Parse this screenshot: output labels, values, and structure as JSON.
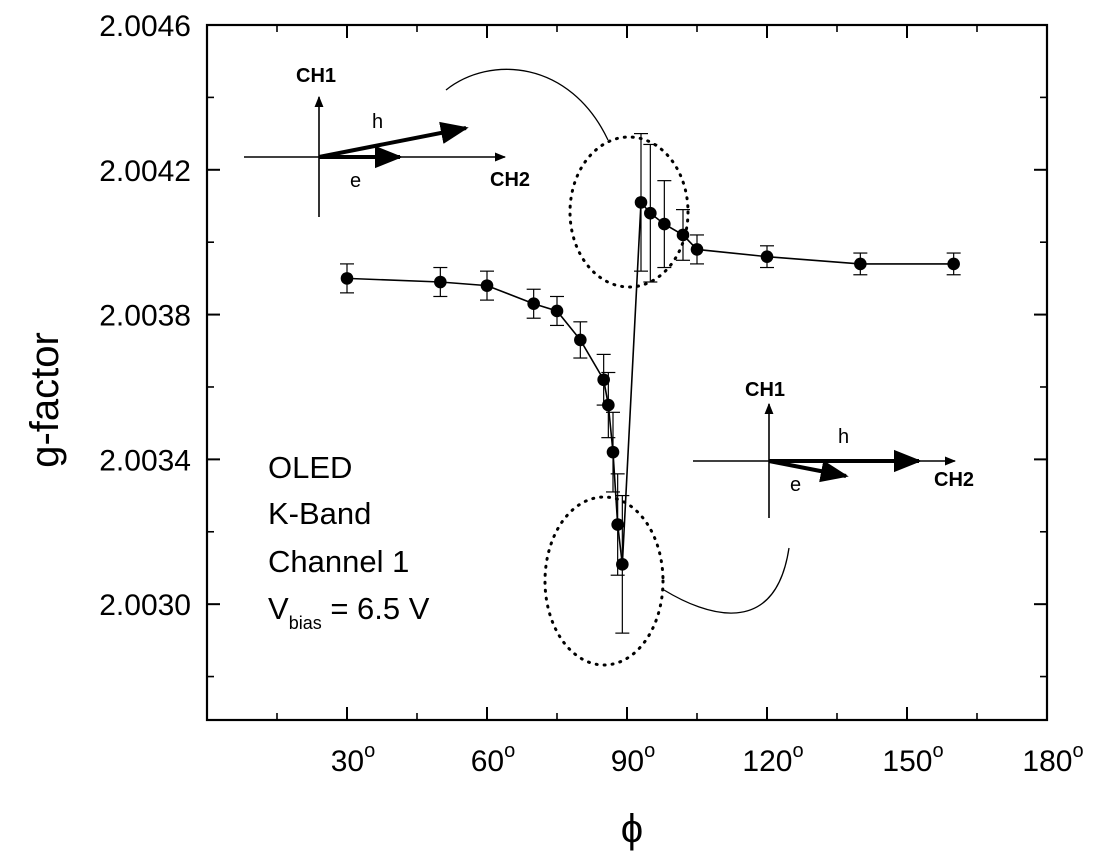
{
  "chart_data": {
    "type": "scatter",
    "xlabel": "ϕ",
    "ylabel": "g-factor",
    "xlim": [
      0,
      180
    ],
    "ylim": [
      2.00268,
      2.0046
    ],
    "x_ticks": [
      {
        "value": 30,
        "label": "30",
        "sup": "o"
      },
      {
        "value": 60,
        "label": "60",
        "sup": "o"
      },
      {
        "value": 90,
        "label": "90",
        "sup": "o"
      },
      {
        "value": 120,
        "label": "120",
        "sup": "o"
      },
      {
        "value": 150,
        "label": "150",
        "sup": "o"
      },
      {
        "value": 180,
        "label": "180",
        "sup": "o"
      }
    ],
    "y_ticks": [
      {
        "value": 2.003,
        "label": "2.0030"
      },
      {
        "value": 2.0034,
        "label": "2.0034"
      },
      {
        "value": 2.0038,
        "label": "2.0038"
      },
      {
        "value": 2.0042,
        "label": "2.0042"
      },
      {
        "value": 2.0046,
        "label": "2.0046"
      }
    ],
    "grid": false,
    "series": [
      {
        "points": [
          {
            "x": 30,
            "y": 2.0039,
            "err": 4e-05
          },
          {
            "x": 50,
            "y": 2.00389,
            "err": 4e-05
          },
          {
            "x": 60,
            "y": 2.00388,
            "err": 4e-05
          },
          {
            "x": 70,
            "y": 2.00383,
            "err": 4e-05
          },
          {
            "x": 75,
            "y": 2.00381,
            "err": 4e-05
          },
          {
            "x": 80,
            "y": 2.00373,
            "err": 5e-05
          },
          {
            "x": 85,
            "y": 2.00362,
            "err": 7e-05
          },
          {
            "x": 86,
            "y": 2.00355,
            "err": 9e-05
          },
          {
            "x": 87,
            "y": 2.00342,
            "err": 0.00011
          },
          {
            "x": 88,
            "y": 2.00322,
            "err": 0.00014
          },
          {
            "x": 89,
            "y": 2.00311,
            "err": 0.00019
          },
          {
            "x": 93,
            "y": 2.00411,
            "err": 0.00019
          },
          {
            "x": 95,
            "y": 2.00408,
            "err": 0.00019
          },
          {
            "x": 98,
            "y": 2.00405,
            "err": 0.00012
          },
          {
            "x": 102,
            "y": 2.00402,
            "err": 7e-05
          },
          {
            "x": 105,
            "y": 2.00398,
            "err": 4e-05
          },
          {
            "x": 120,
            "y": 2.00396,
            "err": 3e-05
          },
          {
            "x": 140,
            "y": 2.00394,
            "err": 3e-05
          },
          {
            "x": 160,
            "y": 2.00394,
            "err": 3e-05
          }
        ]
      }
    ],
    "annotations": {
      "legend_lines": [
        "OLED",
        "K-Band",
        "Channel 1"
      ],
      "vbias_main": "V",
      "vbias_sub": "bias",
      "vbias_value": " = 6.5 V",
      "inset_top": {
        "ch1": "CH1",
        "ch2": "CH2",
        "h": "h",
        "e": "e"
      },
      "inset_bottom": {
        "ch1": "CH1",
        "ch2": "CH2",
        "h": "h",
        "e": "e"
      }
    }
  }
}
